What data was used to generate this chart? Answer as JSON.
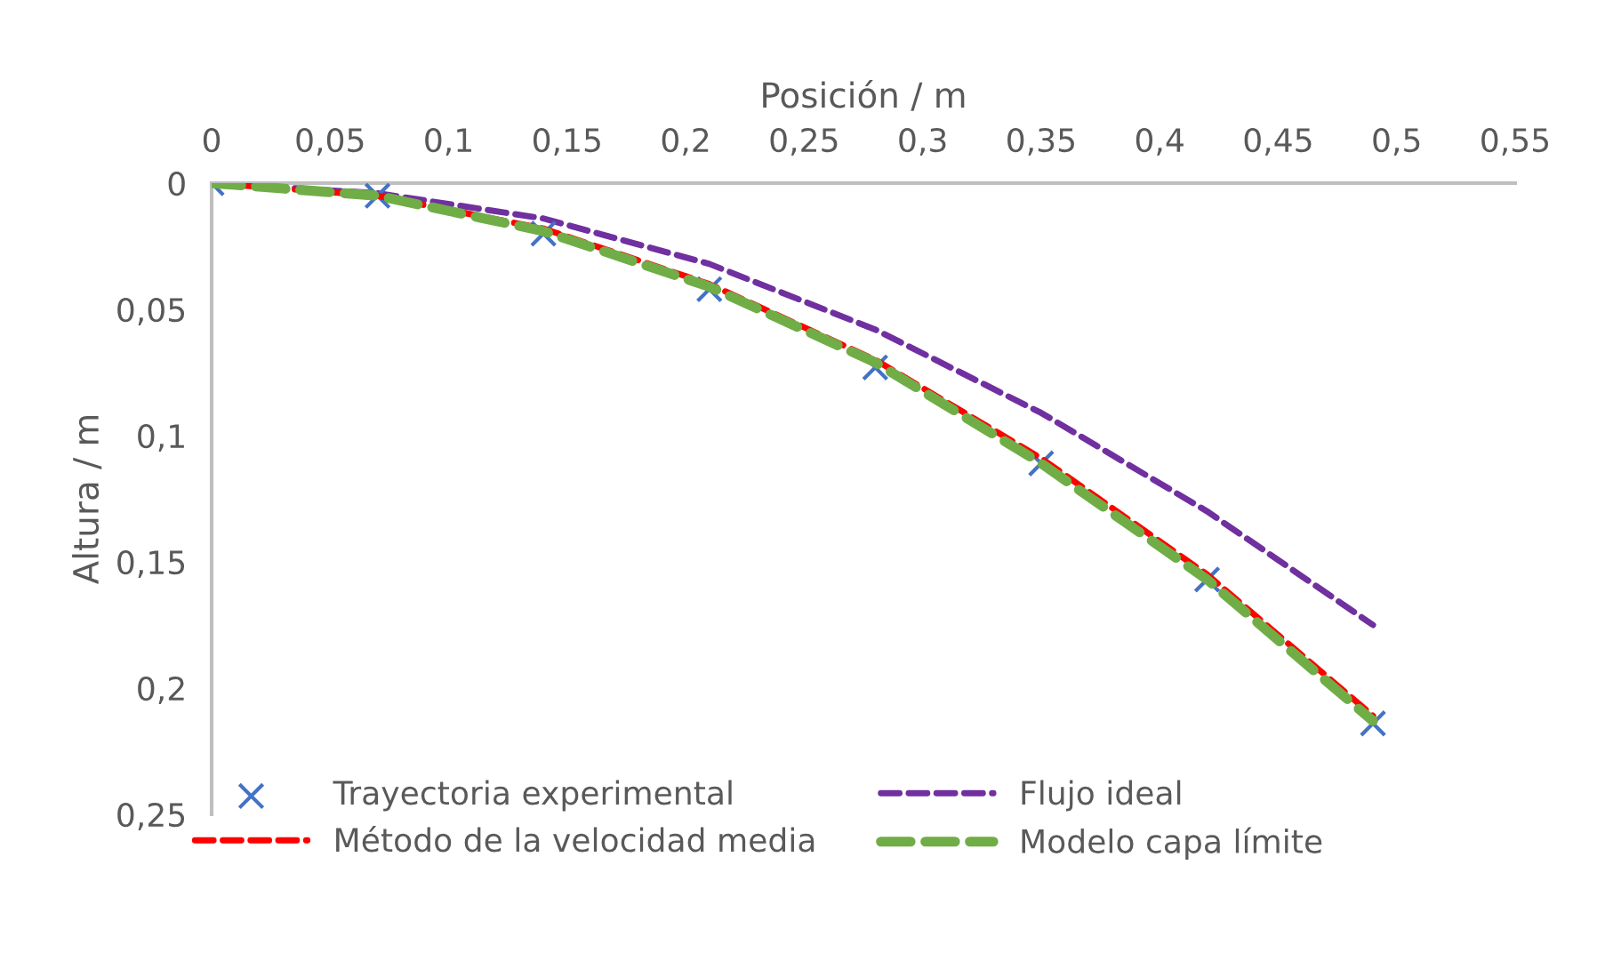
{
  "chart_data": {
    "type": "line",
    "xlabel": "Posición / m",
    "ylabel": "Altura / m",
    "xlim": [
      0,
      0.55
    ],
    "xticks": [
      {
        "value": 0,
        "label": "0"
      },
      {
        "value": 0.05,
        "label": "0,05"
      },
      {
        "value": 0.1,
        "label": "0,1"
      },
      {
        "value": 0.15,
        "label": "0,15"
      },
      {
        "value": 0.2,
        "label": "0,2"
      },
      {
        "value": 0.25,
        "label": "0,25"
      },
      {
        "value": 0.3,
        "label": "0,3"
      },
      {
        "value": 0.35,
        "label": "0,35"
      },
      {
        "value": 0.4,
        "label": "0,4"
      },
      {
        "value": 0.45,
        "label": "0,45"
      },
      {
        "value": 0.5,
        "label": "0,5"
      },
      {
        "value": 0.55,
        "label": "0,55"
      }
    ],
    "ylim": [
      0.25,
      0
    ],
    "yticks": [
      {
        "value": 0,
        "label": "0"
      },
      {
        "value": 0.05,
        "label": "0,05"
      },
      {
        "value": 0.1,
        "label": "0,1"
      },
      {
        "value": 0.15,
        "label": "0,15"
      },
      {
        "value": 0.2,
        "label": "0,2"
      },
      {
        "value": 0.25,
        "label": "0,25"
      }
    ],
    "x": [
      0,
      0.07,
      0.14,
      0.21,
      0.28,
      0.35,
      0.42,
      0.49
    ],
    "grid": false,
    "legend": "bottom",
    "series": [
      {
        "name": "Trayectoria experimental",
        "type": "scatter",
        "marker": "cross",
        "color": "#4472c4",
        "values": [
          0,
          0.005,
          0.02,
          0.042,
          0.073,
          0.111,
          0.157,
          0.214
        ]
      },
      {
        "name": "Flujo ideal",
        "line_style": "dashed",
        "marker": "none",
        "color": "#7030a0",
        "values": [
          0,
          0.004,
          0.014,
          0.032,
          0.058,
          0.091,
          0.13,
          0.175
        ]
      },
      {
        "name": "Método de la velocidad media",
        "line_style": "dashed",
        "marker": "none",
        "color": "#ff0000",
        "values": [
          0,
          0.005,
          0.018,
          0.04,
          0.07,
          0.109,
          0.155,
          0.211
        ]
      },
      {
        "name": "Modelo capa límite",
        "line_style": "dashed",
        "marker": "none",
        "color": "#70ad47",
        "values": [
          0,
          0.005,
          0.019,
          0.041,
          0.071,
          0.111,
          0.157,
          0.213
        ]
      }
    ]
  }
}
